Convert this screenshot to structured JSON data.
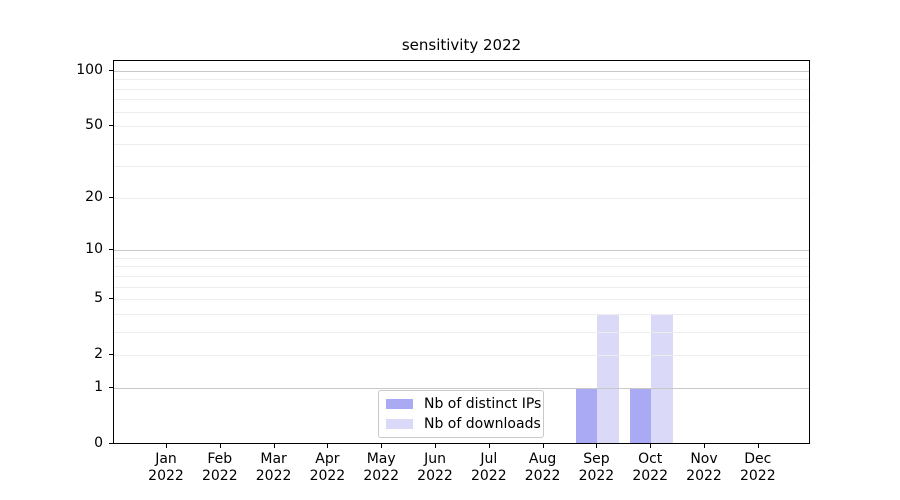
{
  "chart_data": {
    "type": "bar",
    "title": "sensitivity 2022",
    "xlabel": "",
    "ylabel": "",
    "yscale": "log1p",
    "ylim": [
      0,
      100
    ],
    "yticks": [
      0,
      1,
      2,
      5,
      10,
      20,
      50,
      100
    ],
    "grid_major": [
      1,
      10,
      100
    ],
    "grid_minor": [
      2,
      3,
      4,
      5,
      6,
      7,
      8,
      9,
      20,
      30,
      40,
      50,
      60,
      70,
      80,
      90
    ],
    "grid": "on",
    "legend_position": "lower center",
    "categories": [
      {
        "month": "Jan",
        "year": "2022"
      },
      {
        "month": "Feb",
        "year": "2022"
      },
      {
        "month": "Mar",
        "year": "2022"
      },
      {
        "month": "Apr",
        "year": "2022"
      },
      {
        "month": "May",
        "year": "2022"
      },
      {
        "month": "Jun",
        "year": "2022"
      },
      {
        "month": "Jul",
        "year": "2022"
      },
      {
        "month": "Aug",
        "year": "2022"
      },
      {
        "month": "Sep",
        "year": "2022"
      },
      {
        "month": "Oct",
        "year": "2022"
      },
      {
        "month": "Nov",
        "year": "2022"
      },
      {
        "month": "Dec",
        "year": "2022"
      }
    ],
    "series": [
      {
        "name": "Nb of distinct IPs",
        "color": "#a9a9f4",
        "values": [
          0,
          0,
          0,
          0,
          0,
          0,
          0,
          0,
          1,
          1,
          0,
          0
        ]
      },
      {
        "name": "Nb of downloads",
        "color": "#dadaf8",
        "values": [
          0,
          0,
          0,
          0,
          0,
          0,
          0,
          0,
          4,
          4,
          0,
          0
        ]
      }
    ],
    "colors": {
      "grid_major": "#c9c9c9",
      "grid_minor": "#ededed",
      "axis": "#000000",
      "text": "#000000",
      "legend_border": "#c9c9c9",
      "background": "#ffffff"
    }
  }
}
